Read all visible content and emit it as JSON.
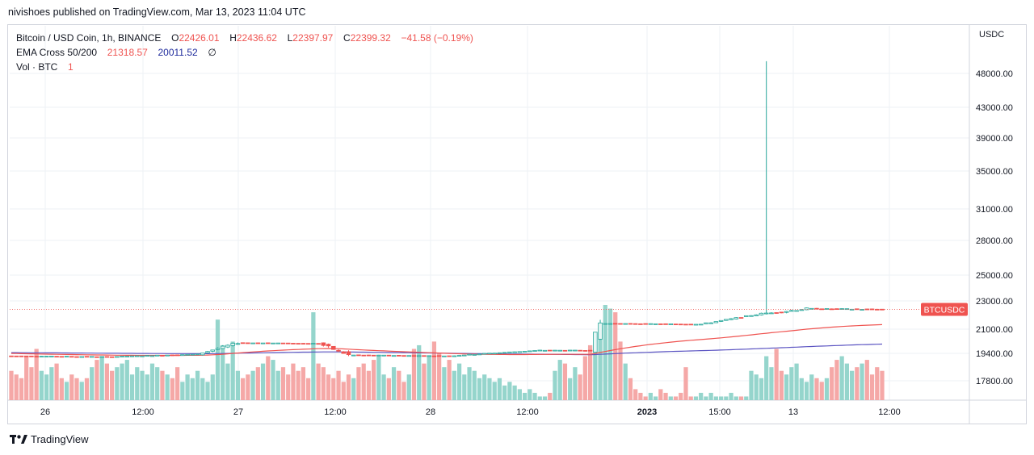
{
  "header": {
    "publisher": "nivishoes published on TradingView.com, Mar 13, 2023 11:04 UTC"
  },
  "legend": {
    "symbol": "Bitcoin / USD Coin, 1h, BINANCE",
    "o_label": "O",
    "o_value": "22426.01",
    "h_label": "H",
    "h_value": "22436.62",
    "l_label": "L",
    "l_value": "22397.97",
    "c_label": "C",
    "c_value": "22399.32",
    "change": "−41.58 (−0.19%)",
    "ema_label": "EMA Cross 50/200",
    "ema_fast": "21318.57",
    "ema_slow": "20011.52",
    "ema_symbol": "∅",
    "vol_label": "Vol · BTC",
    "vol_value": "1"
  },
  "footer": {
    "logo_text": "TradingView"
  },
  "colors": {
    "up": "#26a69a",
    "down": "#ef5350",
    "up_vol": "#8fd3c9",
    "down_vol": "#f4a3a2",
    "ema_fast": "#ef5350",
    "ema_slow": "#5b54c2",
    "grid": "#eef2f5"
  },
  "chart_data": {
    "type": "candlestick",
    "title": "Bitcoin / USD Coin, 1h, BINANCE",
    "axis_currency": "USDC",
    "price_tag": "BTCUSDC",
    "y_ticks": [
      17800,
      19400,
      21000,
      23000,
      25000,
      28000,
      31000,
      35000,
      39000,
      43000,
      48000
    ],
    "y_tick_labels": [
      "17800.00",
      "19400.00",
      "21000.00",
      "23000.00",
      "25000.00",
      "28000.00",
      "31000.00",
      "35000.00",
      "39000.00",
      "43000.00",
      "48000.00"
    ],
    "x_ticks": [
      {
        "label": "26",
        "bold": false
      },
      {
        "label": "12:00",
        "bold": false
      },
      {
        "label": "27",
        "bold": false
      },
      {
        "label": "12:00",
        "bold": false
      },
      {
        "label": "28",
        "bold": false
      },
      {
        "label": "12:00",
        "bold": false
      },
      {
        "label": "2023",
        "bold": true
      },
      {
        "label": "15:00",
        "bold": false
      },
      {
        "label": "13",
        "bold": false
      },
      {
        "label": "12:00",
        "bold": false
      }
    ],
    "current_price": 22399.32,
    "segments": [
      {
        "start_price": 19250,
        "end_price": 19200,
        "count": 20,
        "volatility": 25
      },
      {
        "start_price": 19200,
        "end_price": 19350,
        "count": 18,
        "volatility": 25
      },
      {
        "start_price": 19350,
        "end_price": 20100,
        "count": 8,
        "volatility": 120
      },
      {
        "start_price": 20100,
        "end_price": 20050,
        "count": 16,
        "volatility": 25
      },
      {
        "start_price": 20050,
        "end_price": 19300,
        "count": 6,
        "volatility": 200
      },
      {
        "start_price": 19300,
        "end_price": 19250,
        "count": 20,
        "volatility": 30
      },
      {
        "start_price": 19250,
        "end_price": 19600,
        "count": 18,
        "volatility": 40
      },
      {
        "start_price": 19600,
        "end_price": 19600,
        "count": 10,
        "volatility": 25
      },
      {
        "start_price": 19600,
        "end_price": 21400,
        "count": 2,
        "volatility": 600
      },
      {
        "start_price": 21400,
        "end_price": 21350,
        "count": 20,
        "volatility": 30
      },
      {
        "start_price": 21350,
        "end_price": 22100,
        "count": 12,
        "volatility": 80
      },
      {
        "start_price": 22100,
        "end_price": 22450,
        "count": 8,
        "volatility": 120
      },
      {
        "start_price": 22450,
        "end_price": 22399,
        "count": 15,
        "volatility": 60
      }
    ],
    "spike": {
      "index_after_segment": 10,
      "high": 49800
    },
    "volume_profile": [
      8,
      7,
      6,
      12,
      9,
      14,
      8,
      7,
      9,
      10,
      6,
      5,
      7,
      6,
      5,
      6,
      9,
      11,
      12,
      10,
      8,
      9,
      10,
      11,
      7,
      9,
      8,
      7,
      10,
      9,
      8,
      7,
      6,
      9,
      5,
      7,
      6,
      8,
      6,
      5,
      7,
      22,
      15,
      10,
      16,
      8,
      6,
      7,
      8,
      9,
      10,
      12,
      11,
      8,
      9,
      7,
      10,
      8,
      9,
      6,
      24,
      10,
      9,
      7,
      6,
      8,
      5,
      7,
      6,
      9,
      10,
      8,
      11,
      12,
      7,
      6,
      9,
      8,
      5,
      7,
      14,
      15,
      10,
      12,
      16,
      13,
      9,
      11,
      8,
      10,
      7,
      9,
      8,
      6,
      7,
      6,
      5,
      6,
      4,
      5,
      4,
      3,
      2,
      3,
      2,
      1,
      1,
      2,
      8,
      11,
      10,
      6,
      9,
      7,
      12,
      15,
      14,
      20,
      26,
      25,
      24,
      16,
      10,
      6,
      3,
      2,
      1,
      2,
      1,
      3,
      2,
      1,
      1,
      2,
      9,
      1,
      1,
      2,
      1,
      2,
      1,
      1,
      1,
      2,
      1,
      1,
      1
    ],
    "ema_fast_end": 21318.57,
    "ema_slow_end": 20011.52
  }
}
